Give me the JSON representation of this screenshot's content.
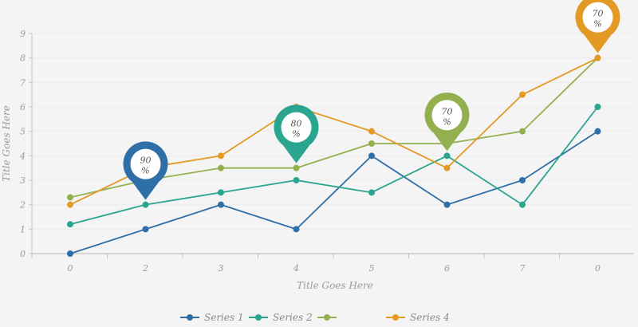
{
  "chart_data": {
    "type": "line",
    "title": "",
    "xlabel": "Title Goes Here",
    "ylabel": "Title Goes Here",
    "categories": [
      "0",
      "2",
      "3",
      "4",
      "5",
      "6",
      "7",
      "0"
    ],
    "ylim": [
      0,
      9
    ],
    "yticks": [
      "0",
      "1",
      "2",
      "3",
      "4",
      "5",
      "6",
      "7",
      "8",
      "9"
    ],
    "grid": true,
    "legend_position": "bottom",
    "series": [
      {
        "name": "Series 1",
        "color": "#2f6fa8",
        "values": [
          0,
          1,
          2,
          1,
          4,
          2,
          3,
          5
        ]
      },
      {
        "name": "Series 2",
        "color": "#2aa58f",
        "values": [
          1.2,
          2,
          2.5,
          3,
          2.5,
          4,
          2,
          6
        ]
      },
      {
        "name": "",
        "color": "#93b04f",
        "values": [
          2.3,
          3,
          3.5,
          3.5,
          4.5,
          4.5,
          5,
          8
        ]
      },
      {
        "name": "Series 4",
        "color": "#e39a25",
        "values": [
          2,
          3.5,
          4,
          6,
          5,
          3.5,
          6.5,
          8
        ]
      }
    ],
    "annotations": [
      {
        "line1": "90",
        "line2": "%",
        "category_index": 1,
        "series_index": 1,
        "color": "#2f6fa8"
      },
      {
        "line1": "80",
        "line2": "%",
        "category_index": 3,
        "series_index": 2,
        "color": "#2aa58f"
      },
      {
        "line1": "70",
        "line2": "%",
        "category_index": 5,
        "series_index": 1,
        "color": "#93b04f"
      },
      {
        "line1": "70",
        "line2": "%",
        "category_index": 7,
        "series_index": 3,
        "color": "#e39a25"
      }
    ]
  }
}
